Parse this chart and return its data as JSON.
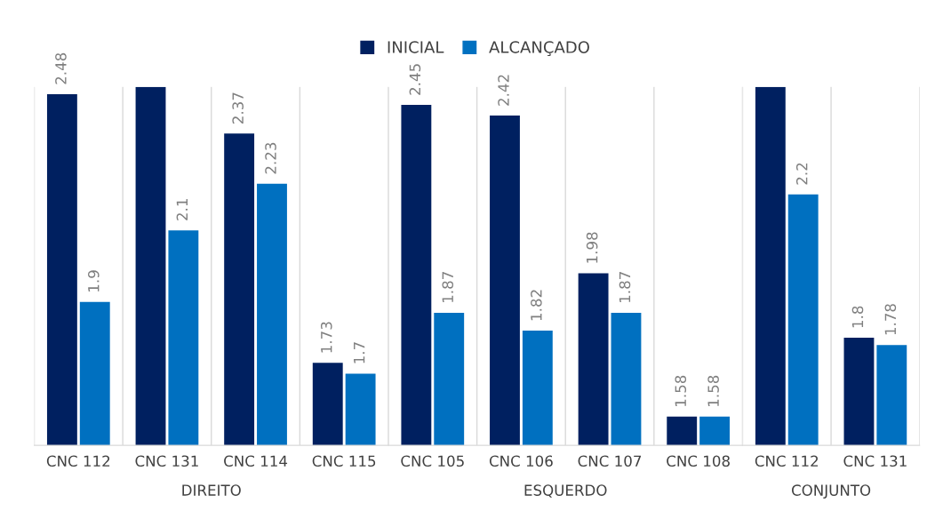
{
  "chart_data": [
    {
      "type": "bar",
      "xlabel": "DIREITO",
      "categories": [
        "CNC 112",
        "CNC 131",
        "CNC 114",
        "CNC 115"
      ],
      "ylim": [
        1.5,
        2.5
      ],
      "tick_labels": "x",
      "grid": "x",
      "legend": "top",
      "series": [
        {
          "name": "INICIAL",
          "color": "#002060",
          "values": [
            2.48,
            2.5,
            2.37,
            1.73
          ],
          "value_labels": [
            "2.48",
            null,
            "2.37",
            "1.73"
          ]
        },
        {
          "name": "ALCANÇADO",
          "color": "#0070c0",
          "values": [
            1.9,
            2.1,
            2.23,
            1.7
          ],
          "value_labels": [
            "1.9",
            "2.1",
            "2.23",
            "1.7"
          ]
        }
      ]
    },
    {
      "type": "bar",
      "xlabel": "ESQUERDO",
      "categories": [
        "CNC 105",
        "CNC 106",
        "CNC 107",
        "CNC 108"
      ],
      "ylim": [
        1.5,
        2.5
      ],
      "tick_labels": "x",
      "grid": "x",
      "legend": "top",
      "series": [
        {
          "name": "INICIAL",
          "color": "#002060",
          "values": [
            2.45,
            2.42,
            1.98,
            1.58
          ],
          "value_labels": [
            "2.45",
            "2.42",
            "1.98",
            "1.58"
          ]
        },
        {
          "name": "ALCANÇADO",
          "color": "#0070c0",
          "values": [
            1.87,
            1.82,
            1.87,
            1.58
          ],
          "value_labels": [
            "1.87",
            "1.82",
            "1.87",
            "1.58"
          ]
        }
      ]
    },
    {
      "type": "bar",
      "xlabel": "CONJUNTO",
      "categories": [
        "CNC 112",
        "CNC 131"
      ],
      "ylim": [
        1.5,
        2.5
      ],
      "tick_labels": "x",
      "grid": "x",
      "legend": "top",
      "series": [
        {
          "name": "INICIAL",
          "color": "#002060",
          "values": [
            2.5,
            1.8
          ],
          "value_labels": [
            null,
            "1.8"
          ]
        },
        {
          "name": "ALCANÇADO",
          "color": "#0070c0",
          "values": [
            2.2,
            1.78
          ],
          "value_labels": [
            "2.2",
            "1.78"
          ]
        }
      ]
    }
  ]
}
